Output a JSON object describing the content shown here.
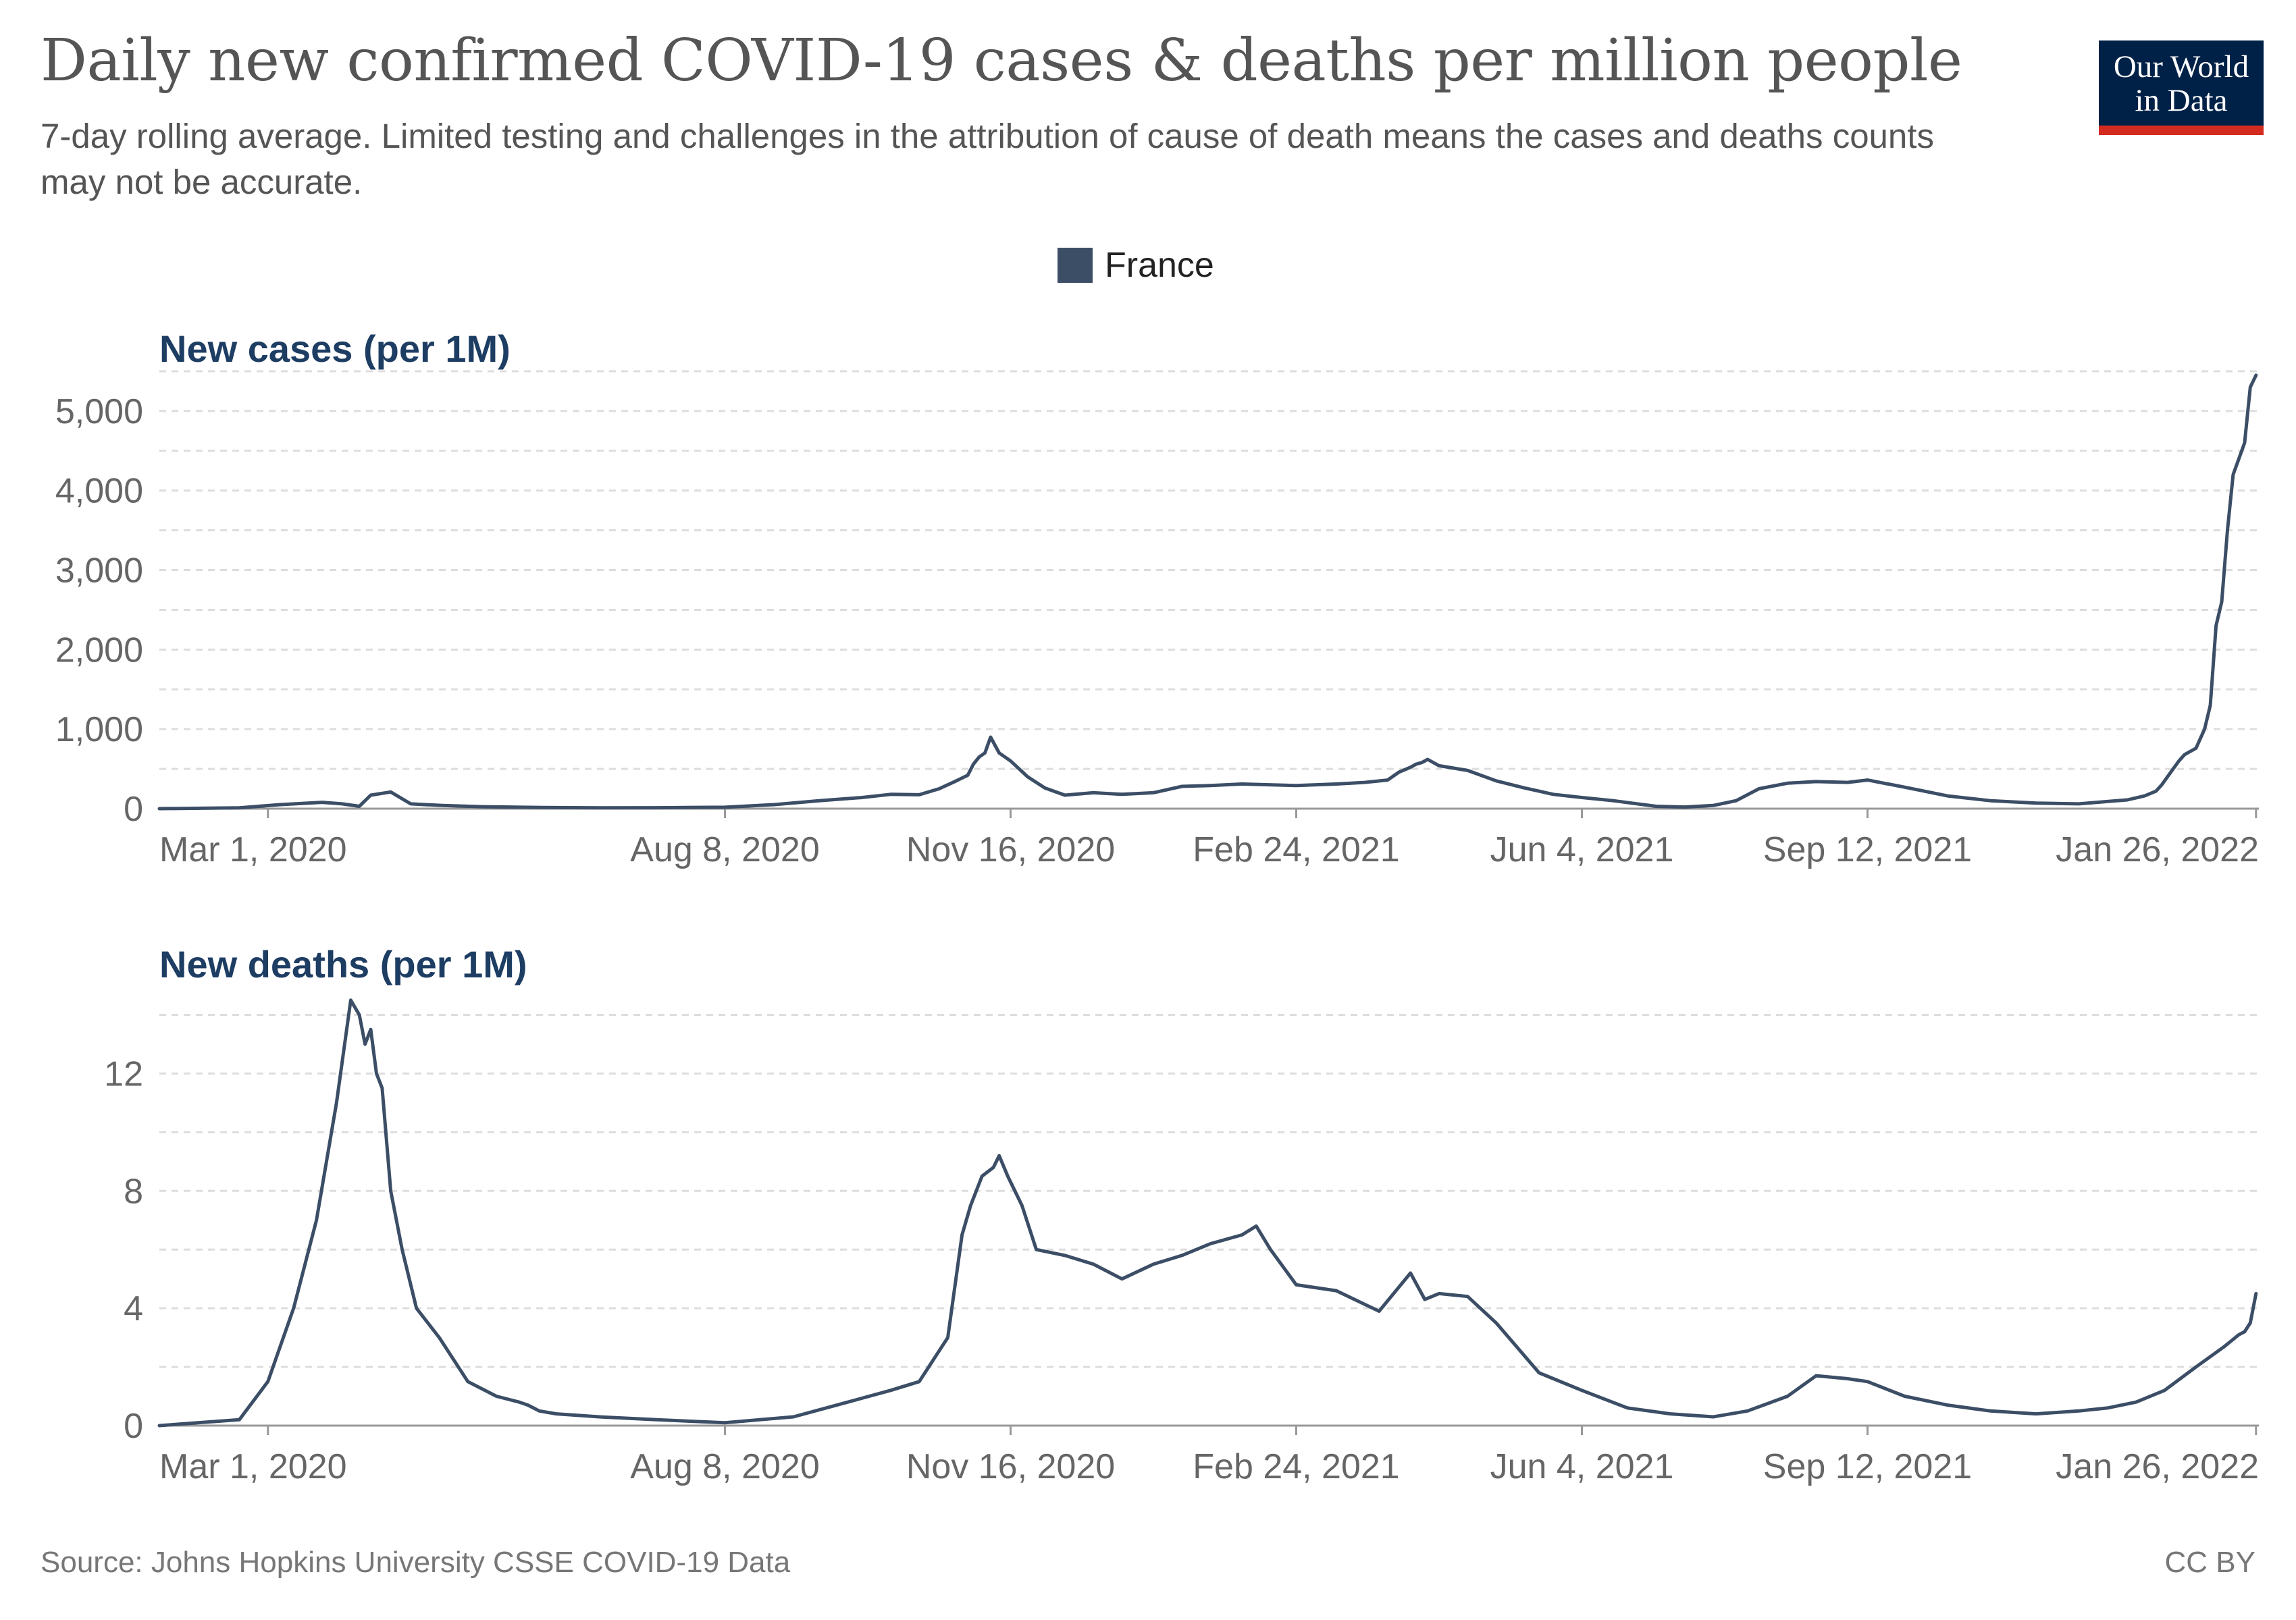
{
  "header": {
    "title": "Daily new confirmed COVID-19 cases & deaths per million people",
    "subtitle": "7-day rolling average. Limited testing and challenges in the attribution of cause of death means the cases and deaths counts may not be accurate.",
    "logo_line1": "Our World",
    "logo_line2": "in Data"
  },
  "legend": {
    "label": "France",
    "color": "#3c4e66"
  },
  "footer": {
    "source": "Source: Johns Hopkins University CSSE COVID-19 Data",
    "license": "CC BY"
  },
  "colors": {
    "line": "#3c4e66",
    "grid": "#dddddd",
    "axis": "#999999",
    "tick_text": "#666666",
    "panel_title": "#1d3d63"
  },
  "chart_data": [
    {
      "type": "line",
      "title": "New cases (per 1M)",
      "date_start": "2020-01-23",
      "xlim": [
        "2020-01-23",
        "2022-01-27"
      ],
      "x_tick_labels": [
        "Mar 1, 2020",
        "Aug 8, 2020",
        "Nov 16, 2020",
        "Feb 24, 2021",
        "Jun 4, 2021",
        "Sep 12, 2021",
        "Jan 26, 2022"
      ],
      "x_tick_dates": [
        "2020-03-01",
        "2020-08-08",
        "2020-11-16",
        "2021-02-24",
        "2021-06-04",
        "2021-09-12",
        "2022-01-26"
      ],
      "ylim": [
        0,
        5500
      ],
      "y_ticks": [
        0,
        1000,
        2000,
        3000,
        4000,
        5000
      ],
      "y_tick_labels": [
        "0",
        "1,000",
        "2,000",
        "3,000",
        "4,000",
        "5,000"
      ],
      "grid": "horizontal dashed",
      "series": [
        {
          "name": "France",
          "x": [
            "2020-01-23",
            "2020-02-20",
            "2020-03-05",
            "2020-03-20",
            "2020-03-27",
            "2020-04-02",
            "2020-04-06",
            "2020-04-13",
            "2020-04-20",
            "2020-05-01",
            "2020-05-15",
            "2020-06-05",
            "2020-06-25",
            "2020-07-15",
            "2020-08-08",
            "2020-08-25",
            "2020-09-10",
            "2020-09-25",
            "2020-10-05",
            "2020-10-15",
            "2020-10-22",
            "2020-10-28",
            "2020-11-01",
            "2020-11-03",
            "2020-11-05",
            "2020-11-07",
            "2020-11-09",
            "2020-11-12",
            "2020-11-16",
            "2020-11-22",
            "2020-11-28",
            "2020-12-05",
            "2020-12-15",
            "2020-12-25",
            "2021-01-05",
            "2021-01-15",
            "2021-01-25",
            "2021-02-05",
            "2021-02-24",
            "2021-03-10",
            "2021-03-20",
            "2021-03-28",
            "2021-04-01",
            "2021-04-03",
            "2021-04-05",
            "2021-04-07",
            "2021-04-09",
            "2021-04-11",
            "2021-04-15",
            "2021-04-25",
            "2021-05-05",
            "2021-05-15",
            "2021-05-25",
            "2021-06-04",
            "2021-06-15",
            "2021-06-30",
            "2021-07-10",
            "2021-07-20",
            "2021-07-28",
            "2021-08-05",
            "2021-08-15",
            "2021-08-25",
            "2021-09-05",
            "2021-09-12",
            "2021-09-25",
            "2021-10-10",
            "2021-10-25",
            "2021-11-10",
            "2021-11-25",
            "2021-12-05",
            "2021-12-12",
            "2021-12-18",
            "2021-12-22",
            "2021-12-24",
            "2021-12-26",
            "2021-12-28",
            "2021-12-30",
            "2022-01-01",
            "2022-01-03",
            "2022-01-05",
            "2022-01-08",
            "2022-01-10",
            "2022-01-12",
            "2022-01-14",
            "2022-01-16",
            "2022-01-18",
            "2022-01-20",
            "2022-01-22",
            "2022-01-24",
            "2022-01-26"
          ],
          "y": [
            0,
            10,
            50,
            80,
            60,
            30,
            170,
            210,
            60,
            40,
            25,
            15,
            10,
            12,
            18,
            50,
            100,
            140,
            180,
            175,
            250,
            350,
            420,
            560,
            650,
            700,
            900,
            700,
            600,
            400,
            260,
            170,
            200,
            180,
            200,
            280,
            290,
            310,
            290,
            310,
            330,
            360,
            460,
            490,
            520,
            560,
            580,
            620,
            540,
            480,
            350,
            260,
            180,
            140,
            100,
            30,
            20,
            40,
            100,
            250,
            320,
            340,
            330,
            360,
            270,
            160,
            100,
            70,
            60,
            90,
            110,
            160,
            220,
            300,
            400,
            500,
            600,
            680,
            720,
            760,
            1000,
            1300,
            2300,
            2600,
            3500,
            4200,
            4400,
            4600,
            5300,
            5450
          ]
        }
      ]
    },
    {
      "type": "line",
      "title": "New deaths (per 1M)",
      "date_start": "2020-01-23",
      "xlim": [
        "2020-01-23",
        "2022-01-27"
      ],
      "x_tick_labels": [
        "Mar 1, 2020",
        "Aug 8, 2020",
        "Nov 16, 2020",
        "Feb 24, 2021",
        "Jun 4, 2021",
        "Sep 12, 2021",
        "Jan 26, 2022"
      ],
      "x_tick_dates": [
        "2020-03-01",
        "2020-08-08",
        "2020-11-16",
        "2021-02-24",
        "2021-06-04",
        "2021-09-12",
        "2022-01-26"
      ],
      "ylim": [
        0,
        15
      ],
      "y_ticks": [
        0,
        4,
        8,
        12
      ],
      "y_tick_labels": [
        "0",
        "4",
        "8",
        "12"
      ],
      "grid": "horizontal dashed",
      "series": [
        {
          "name": "France",
          "x": [
            "2020-01-23",
            "2020-02-20",
            "2020-03-01",
            "2020-03-10",
            "2020-03-18",
            "2020-03-25",
            "2020-03-30",
            "2020-04-02",
            "2020-04-04",
            "2020-04-06",
            "2020-04-08",
            "2020-04-10",
            "2020-04-13",
            "2020-04-17",
            "2020-04-22",
            "2020-04-30",
            "2020-05-10",
            "2020-05-20",
            "2020-05-28",
            "2020-05-31",
            "2020-06-02",
            "2020-06-04",
            "2020-06-10",
            "2020-06-25",
            "2020-07-15",
            "2020-08-08",
            "2020-09-01",
            "2020-09-20",
            "2020-10-05",
            "2020-10-15",
            "2020-10-25",
            "2020-10-30",
            "2020-11-02",
            "2020-11-06",
            "2020-11-10",
            "2020-11-12",
            "2020-11-15",
            "2020-11-20",
            "2020-11-25",
            "2020-12-05",
            "2020-12-15",
            "2020-12-25",
            "2021-01-05",
            "2021-01-15",
            "2021-01-25",
            "2021-02-05",
            "2021-02-10",
            "2021-02-15",
            "2021-02-24",
            "2021-03-10",
            "2021-03-25",
            "2021-04-05",
            "2021-04-10",
            "2021-04-15",
            "2021-04-25",
            "2021-05-05",
            "2021-05-20",
            "2021-06-04",
            "2021-06-20",
            "2021-07-05",
            "2021-07-20",
            "2021-08-01",
            "2021-08-15",
            "2021-08-25",
            "2021-09-05",
            "2021-09-12",
            "2021-09-25",
            "2021-10-10",
            "2021-10-25",
            "2021-11-10",
            "2021-11-25",
            "2021-12-05",
            "2021-12-15",
            "2021-12-25",
            "2022-01-05",
            "2022-01-15",
            "2022-01-20",
            "2022-01-22",
            "2022-01-24",
            "2022-01-26"
          ],
          "y": [
            0,
            0.2,
            1.5,
            4,
            7,
            11,
            14.5,
            14,
            13,
            13.5,
            12,
            11.5,
            8,
            6,
            4,
            3,
            1.5,
            1,
            0.8,
            0.7,
            0.6,
            0.5,
            0.4,
            0.3,
            0.2,
            0.1,
            0.3,
            0.8,
            1.2,
            1.5,
            3,
            6.5,
            7.5,
            8.5,
            8.8,
            9.2,
            8.5,
            7.5,
            6,
            5.8,
            5.5,
            5,
            5.5,
            5.8,
            6.2,
            6.5,
            6.8,
            6,
            4.8,
            4.6,
            3.9,
            5.2,
            4.3,
            4.5,
            4.4,
            3.5,
            1.8,
            1.2,
            0.6,
            0.4,
            0.3,
            0.5,
            1,
            1.7,
            1.6,
            1.5,
            1,
            0.7,
            0.5,
            0.4,
            0.5,
            0.6,
            0.8,
            1.2,
            2,
            2.7,
            3.1,
            3.2,
            3.5,
            4.5
          ]
        }
      ]
    }
  ]
}
